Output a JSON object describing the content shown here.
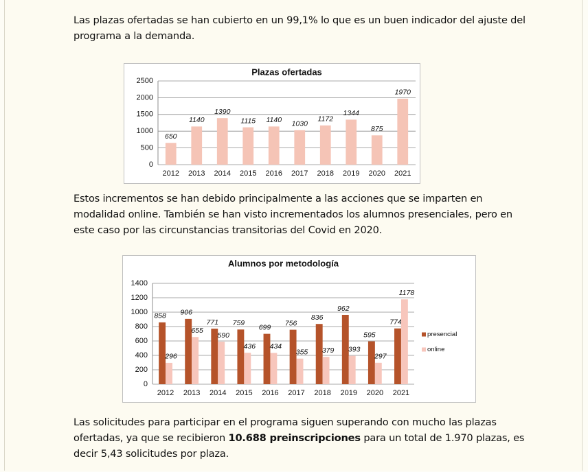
{
  "paragraphs": [
    [
      {
        "text": "Las plazas ofertadas se han cubierto en un 99,1% lo que es un buen indicador del ajuste del programa a la demanda.",
        "bold": false
      }
    ],
    [
      {
        "text": "Estos incrementos se han debido principalmente a las acciones que se imparten en modalidad online. También se han visto incrementados los alumnos presenciales, pero en este caso por las circunstancias transitorias del Covid en 2020.",
        "bold": false
      }
    ],
    [
      {
        "text": "Las solicitudes para participar en el programa siguen superando con mucho las plazas ofertadas, ya que se recibieron ",
        "bold": false
      },
      {
        "text": "10.688 preinscripciones",
        "bold": true
      },
      {
        "text": " para un total de 1.970 plazas, es decir 5,43 solicitudes por plaza.",
        "bold": false
      }
    ]
  ],
  "chart_data": [
    {
      "type": "bar",
      "title": "Plazas ofertadas",
      "categories": [
        "2012",
        "2013",
        "2014",
        "2015",
        "2016",
        "2017",
        "2018",
        "2019",
        "2020",
        "2021"
      ],
      "values": [
        650,
        1140,
        1390,
        1115,
        1140,
        1030,
        1172,
        1344,
        875,
        1970
      ],
      "color": "#f5c4b6",
      "ylim": [
        0,
        2500
      ],
      "yticks": [
        0,
        500,
        1000,
        1500,
        2000,
        2500
      ],
      "grid": true
    },
    {
      "type": "bar",
      "title": "Alumnos por metodología",
      "categories": [
        "2012",
        "2013",
        "2014",
        "2015",
        "2016",
        "2017",
        "2018",
        "2019",
        "2020",
        "2021"
      ],
      "series": [
        {
          "name": "presencial",
          "color": "#b5532a",
          "values": [
            858,
            906,
            771,
            759,
            699,
            756,
            836,
            962,
            595,
            774
          ]
        },
        {
          "name": "online",
          "color": "#f7c6bc",
          "values": [
            296,
            655,
            590,
            436,
            434,
            355,
            379,
            393,
            297,
            1178
          ]
        }
      ],
      "ylim": [
        0,
        1400
      ],
      "yticks": [
        0,
        200,
        400,
        600,
        800,
        1000,
        1200,
        1400
      ],
      "grid": true,
      "legend": "right"
    }
  ]
}
